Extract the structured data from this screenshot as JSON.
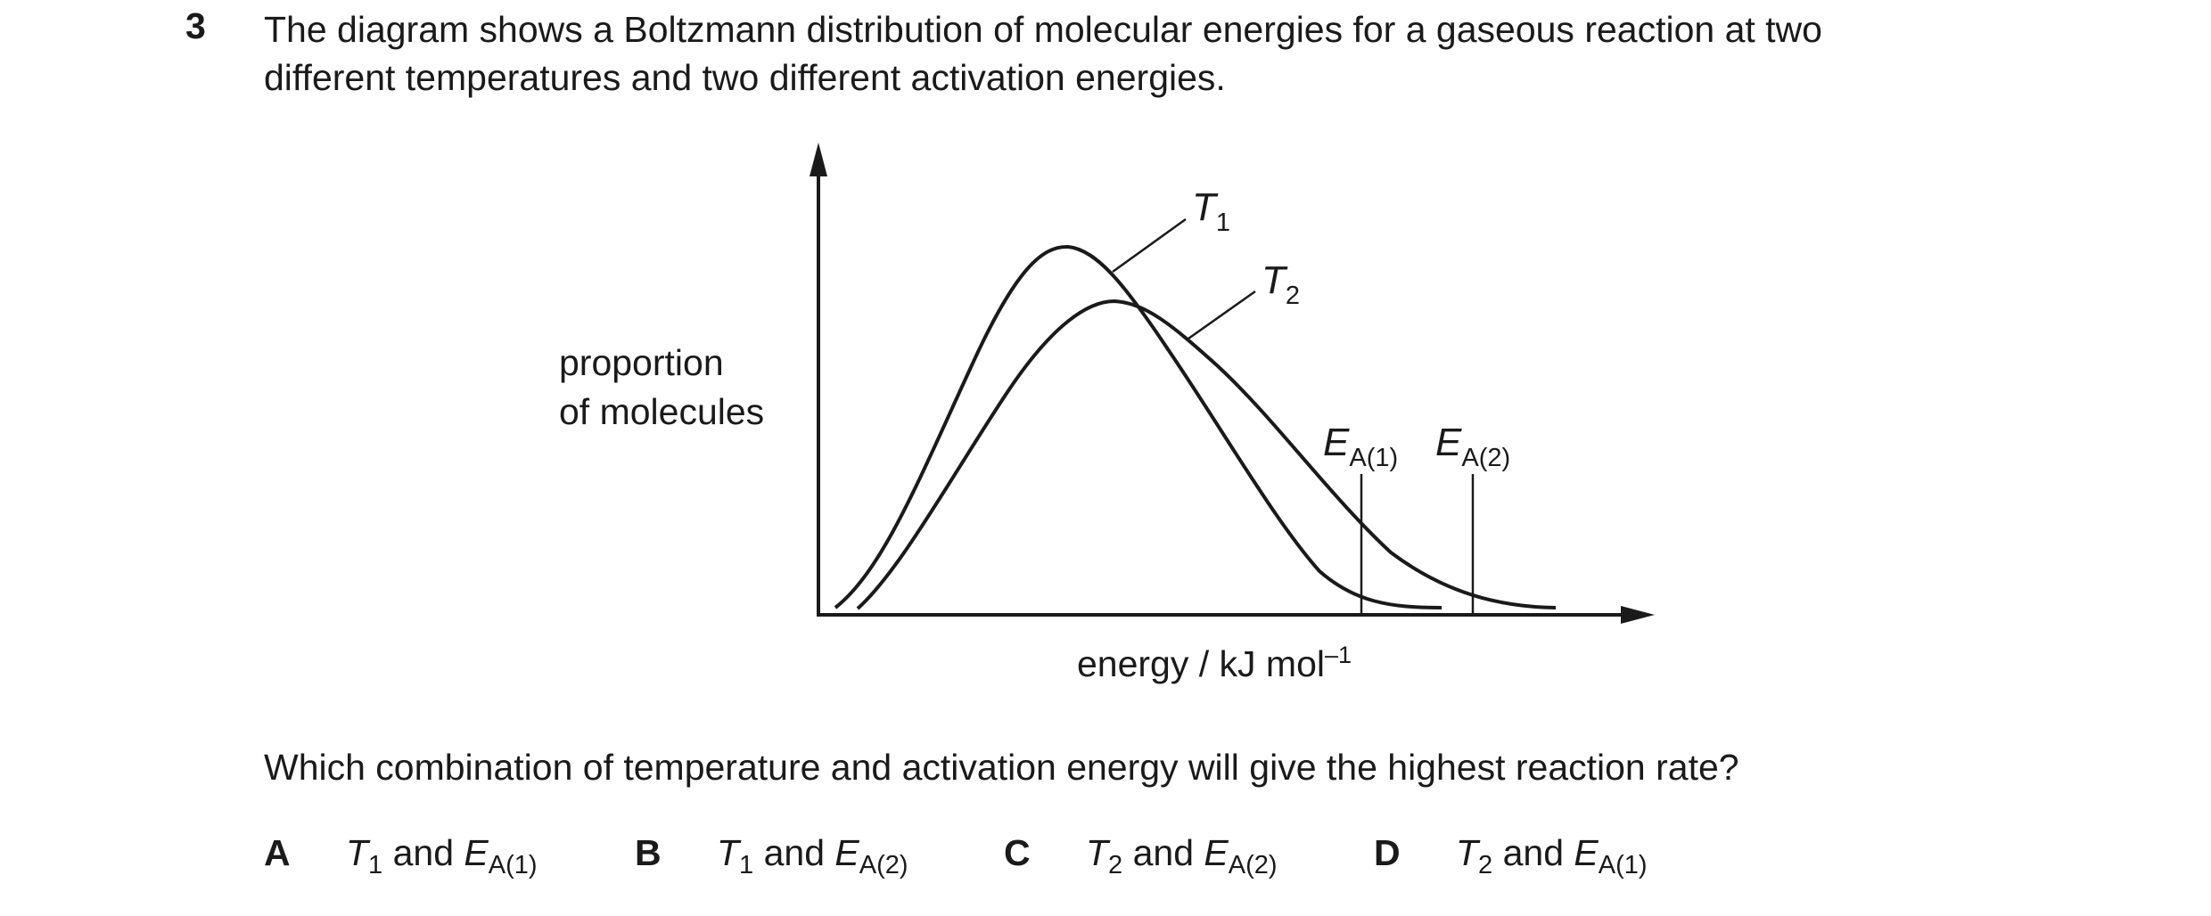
{
  "question": {
    "number": "3",
    "stem_line1": "The diagram shows a Boltzmann distribution of molecular energies for a gaseous reaction at two",
    "stem_line2": "different temperatures and two different activation energies.",
    "prompt": "Which combination of temperature and activation energy will give the highest reaction rate?"
  },
  "diagram": {
    "y_axis_line1": "proportion",
    "y_axis_line2": "of molecules",
    "x_axis_text": "energy / kJ mol",
    "x_axis_sup": "–1",
    "curve_labels": {
      "t1_main": "T",
      "t1_sub": "1",
      "t2_main": "T",
      "t2_sub": "2",
      "ea1_main": "E",
      "ea1_sub": "A(1)",
      "ea2_main": "E",
      "ea2_sub": "A(2)"
    }
  },
  "options": [
    {
      "letter": "A",
      "t_main": "T",
      "t_sub": "1",
      "and": "and",
      "e_main": "E",
      "e_sub": "A(1)"
    },
    {
      "letter": "B",
      "t_main": "T",
      "t_sub": "1",
      "and": "and",
      "e_main": "E",
      "e_sub": "A(2)"
    },
    {
      "letter": "C",
      "t_main": "T",
      "t_sub": "2",
      "and": "and",
      "e_main": "E",
      "e_sub": "A(2)"
    },
    {
      "letter": "D",
      "t_main": "T",
      "t_sub": "2",
      "and": "and",
      "e_main": "E",
      "e_sub": "A(1)"
    }
  ],
  "colors": {
    "ink": "#1a1a1a",
    "background": "#ffffff"
  }
}
